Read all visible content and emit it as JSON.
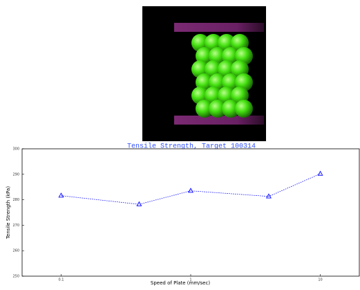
{
  "chart_data": {
    "type": "line",
    "title": "Tensile Strength, Target 100314",
    "xlabel": "Speed of Plate (mm/sec)",
    "ylabel": "Tensile Strength (kPa)",
    "x": [
      0.1,
      0.4,
      1,
      4,
      10
    ],
    "values": [
      281.6,
      278.2,
      283.5,
      281.3,
      290.2
    ],
    "color": "#0000ff",
    "xscale": "log",
    "marker": "triangle",
    "xlim": [
      0.05,
      20
    ],
    "xticks": [
      0.1,
      1,
      10
    ],
    "ylim": [
      250,
      300
    ],
    "yticks": [
      250,
      260,
      270,
      280,
      290,
      300
    ],
    "grid": false
  }
}
